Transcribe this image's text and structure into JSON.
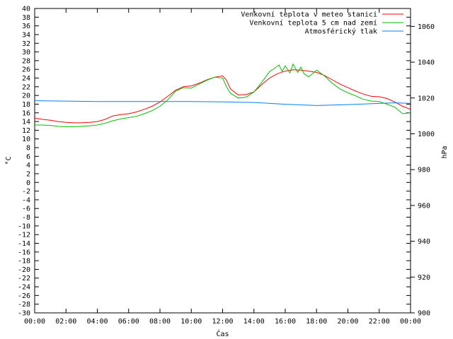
{
  "chart_data": {
    "type": "line",
    "xlabel": "Čas",
    "ylabel_left": "°C",
    "ylabel_right": "hPa",
    "xlim": [
      0,
      24
    ],
    "ylim_left": [
      -30,
      40
    ],
    "ylim_right": [
      900,
      1070
    ],
    "x_ticks": [
      "00:00",
      "02:00",
      "04:00",
      "06:00",
      "08:00",
      "10:00",
      "12:00",
      "14:00",
      "16:00",
      "18:00",
      "20:00",
      "22:00",
      "00:00"
    ],
    "y_ticks_left": [
      40,
      38,
      36,
      34,
      32,
      30,
      28,
      26,
      24,
      22,
      20,
      18,
      16,
      14,
      12,
      10,
      8,
      6,
      4,
      2,
      0,
      -2,
      -4,
      -6,
      -8,
      -10,
      -12,
      -14,
      -16,
      -18,
      -20,
      -22,
      -24,
      -26,
      -28,
      -30
    ],
    "y_ticks_right": [
      1060,
      1040,
      1020,
      1000,
      980,
      960,
      940,
      920,
      900
    ],
    "grid": false,
    "legend_position": "top-right",
    "series": [
      {
        "name": "Venkovní teplota v meteo stanici",
        "axis": "left",
        "color": "#ff0000",
        "x": [
          0,
          0.5,
          1,
          1.5,
          2,
          2.5,
          3,
          3.5,
          4,
          4.5,
          5,
          5.5,
          6,
          6.5,
          7,
          7.5,
          8,
          8.5,
          9,
          9.5,
          10,
          10.5,
          11,
          11.5,
          12,
          12.25,
          12.5,
          13,
          13.5,
          14,
          14.5,
          15,
          15.5,
          16,
          16.5,
          17,
          17.5,
          18,
          18.5,
          19,
          19.5,
          20,
          20.5,
          21,
          21.5,
          22,
          22.5,
          23,
          23.5,
          24
        ],
        "y": [
          14.8,
          14.5,
          14.3,
          14.0,
          13.8,
          13.7,
          13.7,
          13.8,
          14.0,
          14.5,
          15.3,
          15.6,
          15.8,
          16.2,
          16.8,
          17.5,
          18.5,
          19.8,
          21.2,
          22.0,
          22.2,
          22.8,
          23.6,
          24.2,
          24.5,
          23.5,
          21.5,
          20.1,
          20.2,
          20.8,
          22.5,
          24.0,
          25.0,
          25.6,
          25.9,
          25.8,
          25.6,
          25.3,
          24.6,
          23.6,
          22.6,
          21.8,
          21.0,
          20.3,
          19.8,
          19.7,
          19.3,
          18.5,
          17.5,
          16.8
        ]
      },
      {
        "name": "Venkovní teplota 5 cm nad zemí",
        "axis": "left",
        "color": "#00c000",
        "x": [
          0,
          0.5,
          1,
          1.5,
          2,
          2.5,
          3,
          3.5,
          4,
          4.5,
          5,
          5.5,
          6,
          6.5,
          7,
          7.5,
          8,
          8.5,
          9,
          9.5,
          10,
          10.5,
          11,
          11.5,
          12,
          12.25,
          12.5,
          13,
          13.5,
          14,
          14.5,
          15,
          15.3,
          15.6,
          15.8,
          16,
          16.3,
          16.5,
          16.8,
          17,
          17.2,
          17.5,
          18,
          18.5,
          19,
          19.5,
          20,
          20.5,
          21,
          21.5,
          22,
          22.5,
          23,
          23.5,
          24
        ],
        "y": [
          13.2,
          13.2,
          13.1,
          12.9,
          12.8,
          12.8,
          12.9,
          13.0,
          13.2,
          13.6,
          14.2,
          14.6,
          14.9,
          15.2,
          15.8,
          16.5,
          17.5,
          19.0,
          21.0,
          21.8,
          21.7,
          22.6,
          23.5,
          24.2,
          24.0,
          22.0,
          20.5,
          19.4,
          19.6,
          20.8,
          23.0,
          25.5,
          26.2,
          27.0,
          25.5,
          26.8,
          25.2,
          27.2,
          25.3,
          26.5,
          25.0,
          24.3,
          25.8,
          24.5,
          22.8,
          21.5,
          20.6,
          19.9,
          19.1,
          18.7,
          18.6,
          18.0,
          17.3,
          15.8,
          16.0
        ]
      },
      {
        "name": "Atmosférický tlak",
        "axis": "right",
        "color": "#0080ff",
        "x": [
          0,
          2,
          4,
          6,
          8,
          10,
          12,
          14,
          16,
          18,
          20,
          22,
          23,
          24
        ],
        "y": [
          1018.5,
          1018.3,
          1018.0,
          1018.0,
          1018.0,
          1018.0,
          1017.8,
          1017.5,
          1016.5,
          1015.8,
          1016.3,
          1017.0,
          1017.3,
          1017.0
        ]
      }
    ]
  }
}
